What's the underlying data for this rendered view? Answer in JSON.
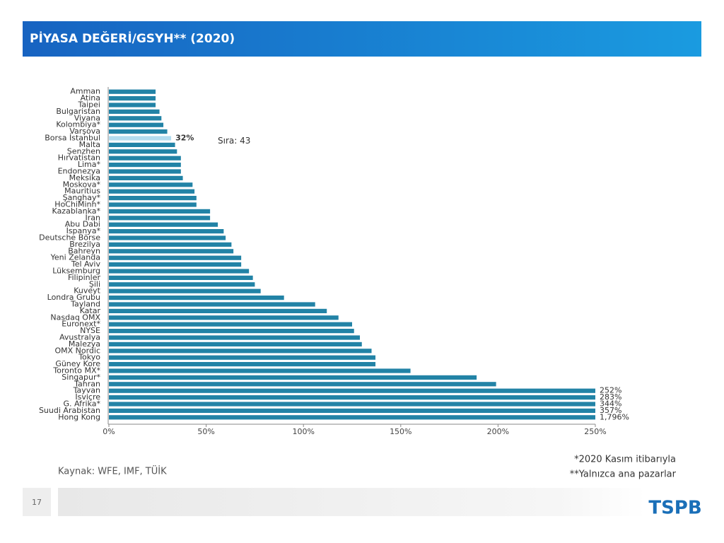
{
  "header": {
    "title": "PİYASA DEĞERİ/GSYH** (2020)",
    "page_number": "17",
    "logo": "TSPB"
  },
  "chart_data": {
    "type": "barh",
    "categories": [
      "Amman",
      "Atina",
      "Taipei",
      "Bulgaristan",
      "Viyana",
      "Kolombiya*",
      "Varşova",
      "Borsa İstanbul",
      "Malta",
      "Şenzhen",
      "Hırvatistan",
      "Lima*",
      "Endonezya",
      "Meksika",
      "Moskova*",
      "Mauritius",
      "Şanghay*",
      "HoChiMinh*",
      "Kazablanka*",
      "İran",
      "Abu Dabi",
      "İspanya*",
      "Deutsche Börse",
      "Brezilya",
      "Bahreyn",
      "Yeni Zelanda",
      "Tel Aviv",
      "Lüksemburg",
      "Filipinler",
      "Şili",
      "Kuveyt",
      "Londra Grubu",
      "Tayland",
      "Katar",
      "Nasdaq OMX",
      "Euronext*",
      "NYSE",
      "Avustralya",
      "Malezya",
      "OMX Nordic",
      "Tokyo",
      "Güney Kore",
      "Toronto MX*",
      "Singapur*",
      "Tahran",
      "Tayvan",
      "İsviçre",
      "G. Afrika*",
      "Suudi Arabistan",
      "Hong Kong"
    ],
    "values": [
      24,
      24,
      24,
      26,
      27,
      28,
      30,
      32,
      34,
      35,
      37,
      37,
      37,
      38,
      43,
      44,
      45,
      45,
      52,
      52,
      56,
      59,
      60,
      63,
      64,
      68,
      68,
      72,
      74,
      75,
      78,
      90,
      106,
      112,
      118,
      125,
      126,
      129,
      130,
      135,
      137,
      137,
      155,
      189,
      199,
      252,
      283,
      344,
      357,
      1796
    ],
    "value_labels": [
      null,
      null,
      null,
      null,
      null,
      null,
      null,
      "32%",
      null,
      null,
      null,
      null,
      null,
      null,
      null,
      null,
      null,
      null,
      null,
      null,
      null,
      null,
      null,
      null,
      null,
      null,
      null,
      null,
      null,
      null,
      null,
      null,
      null,
      null,
      null,
      null,
      null,
      null,
      null,
      null,
      null,
      null,
      null,
      null,
      null,
      "252%",
      "283%",
      "344%",
      "357%",
      "1,796%"
    ],
    "colors": [
      "#2283a6",
      "#2283a6",
      "#2283a6",
      "#2283a6",
      "#2283a6",
      "#2283a6",
      "#2283a6",
      "#b3dcef",
      "#2283a6",
      "#2283a6",
      "#2283a6",
      "#2283a6",
      "#2283a6",
      "#2283a6",
      "#2283a6",
      "#2283a6",
      "#2283a6",
      "#2283a6",
      "#2283a6",
      "#2283a6",
      "#2283a6",
      "#2283a6",
      "#2283a6",
      "#2283a6",
      "#2283a6",
      "#2283a6",
      "#2283a6",
      "#2283a6",
      "#2283a6",
      "#2283a6",
      "#2283a6",
      "#2283a6",
      "#2283a6",
      "#2283a6",
      "#2283a6",
      "#2283a6",
      "#2283a6",
      "#2283a6",
      "#2283a6",
      "#2283a6",
      "#2283a6",
      "#2283a6",
      "#2283a6",
      "#2283a6",
      "#2283a6",
      "#2283a6",
      "#2283a6",
      "#2283a6",
      "#2283a6",
      "#2283a6"
    ],
    "annotation": "Sıra: 43",
    "xlim": [
      0,
      250
    ],
    "xticks": [
      {
        "value": 0,
        "label": "0%"
      },
      {
        "value": 50,
        "label": "50%"
      },
      {
        "value": 100,
        "label": "100%"
      },
      {
        "value": 150,
        "label": "150%"
      },
      {
        "value": 200,
        "label": "200%"
      },
      {
        "value": 250,
        "label": "250%"
      }
    ],
    "source": "Kaynak: WFE, IMF, TÜİK",
    "notes": [
      "*2020 Kasım itibarıyla",
      "**Yalnızca ana pazarlar"
    ]
  }
}
